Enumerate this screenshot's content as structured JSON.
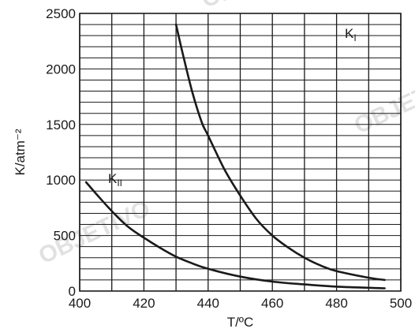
{
  "chart_data": {
    "type": "line",
    "xlabel": "T/ºC",
    "ylabel": "K/atm⁻²",
    "xlim": [
      400,
      500
    ],
    "ylim": [
      0,
      2500
    ],
    "x_ticks": [
      400,
      420,
      440,
      460,
      480,
      500
    ],
    "y_ticks": [
      0,
      500,
      1000,
      1500,
      2000,
      2500
    ],
    "x_minor_gridlines_every": 10,
    "y_minor_gridlines_every": 100,
    "grid": true,
    "legend": "none (curves labelled directly)",
    "series": [
      {
        "name": "KI",
        "label_main": "K",
        "label_sub": "I",
        "x": [
          430,
          432,
          435,
          438,
          440,
          445,
          450,
          455,
          460,
          465,
          470,
          475,
          480,
          490,
          495
        ],
        "y": [
          2400,
          2150,
          1800,
          1520,
          1400,
          1100,
          860,
          650,
          500,
          390,
          300,
          230,
          180,
          120,
          100
        ]
      },
      {
        "name": "KII",
        "label_main": "K",
        "label_sub": "II",
        "x": [
          402,
          405,
          410,
          415,
          420,
          425,
          430,
          435,
          440,
          450,
          460,
          470,
          480,
          495
        ],
        "y": [
          980,
          880,
          720,
          580,
          480,
          390,
          310,
          250,
          200,
          130,
          85,
          60,
          40,
          25
        ]
      }
    ]
  },
  "watermark": {
    "text": "OBJETIVO",
    "color": "#2b6fc7"
  }
}
